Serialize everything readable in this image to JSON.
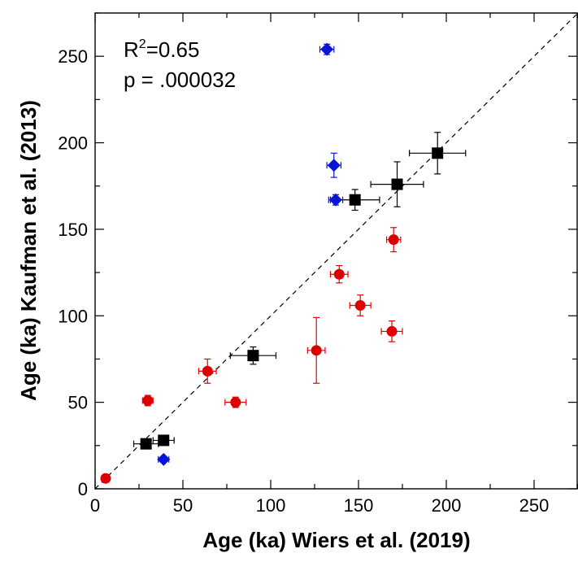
{
  "chart_data": {
    "type": "scatter",
    "xlabel": "Age (ka) Wiers et al. (2019)",
    "ylabel": "Age (ka) Kaufman et al. (2013)",
    "xlim": [
      0,
      275
    ],
    "ylim": [
      0,
      275
    ],
    "x_ticks": [
      0,
      50,
      100,
      150,
      200,
      250
    ],
    "y_ticks": [
      0,
      50,
      100,
      150,
      200,
      250
    ],
    "minor_tick_step": 25,
    "reference_line": {
      "style": "dashed",
      "from": [
        0,
        0
      ],
      "to": [
        275,
        275
      ]
    },
    "annotations": {
      "r2_prefix": "R",
      "r2_sup": "2",
      "r2_value": "=0.65",
      "p_value": "p = .000032"
    },
    "series": [
      {
        "marker": "circle",
        "color": "#dd0000",
        "points": [
          {
            "x": 6,
            "y": 6,
            "xerr": 2,
            "yerr": 1
          },
          {
            "x": 30,
            "y": 51,
            "xerr": 3,
            "yerr": 3
          },
          {
            "x": 64,
            "y": 68,
            "xerr": 5,
            "yerr": 7
          },
          {
            "x": 80,
            "y": 50,
            "xerr": 6,
            "yerr": 3
          },
          {
            "x": 126,
            "y": 80,
            "xerr": 5,
            "yerr": 19
          },
          {
            "x": 139,
            "y": 124,
            "xerr": 5,
            "yerr": 5
          },
          {
            "x": 151,
            "y": 106,
            "xerr": 6,
            "yerr": 6
          },
          {
            "x": 169,
            "y": 91,
            "xerr": 6,
            "yerr": 6
          },
          {
            "x": 170,
            "y": 144,
            "xerr": 4,
            "yerr": 7
          }
        ]
      },
      {
        "marker": "square",
        "color": "#000000",
        "points": [
          {
            "x": 29,
            "y": 26,
            "xerr": 7,
            "yerr": 2
          },
          {
            "x": 39,
            "y": 28,
            "xerr": 6,
            "yerr": 1
          },
          {
            "x": 90,
            "y": 77,
            "xerr": 13,
            "yerr": 5
          },
          {
            "x": 148,
            "y": 167,
            "xerr": 14,
            "yerr": 6
          },
          {
            "x": 172,
            "y": 176,
            "xerr": 15,
            "yerr": 13
          },
          {
            "x": 195,
            "y": 194,
            "xerr": 16,
            "yerr": 12
          }
        ]
      },
      {
        "marker": "diamond",
        "color": "#0a14d6",
        "points": [
          {
            "x": 39,
            "y": 17,
            "xerr": 3,
            "yerr": 1
          },
          {
            "x": 132,
            "y": 254,
            "xerr": 4,
            "yerr": 3
          },
          {
            "x": 136,
            "y": 187,
            "xerr": 4,
            "yerr": 7
          },
          {
            "x": 137,
            "y": 167,
            "xerr": 4,
            "yerr": 3
          }
        ]
      }
    ]
  }
}
